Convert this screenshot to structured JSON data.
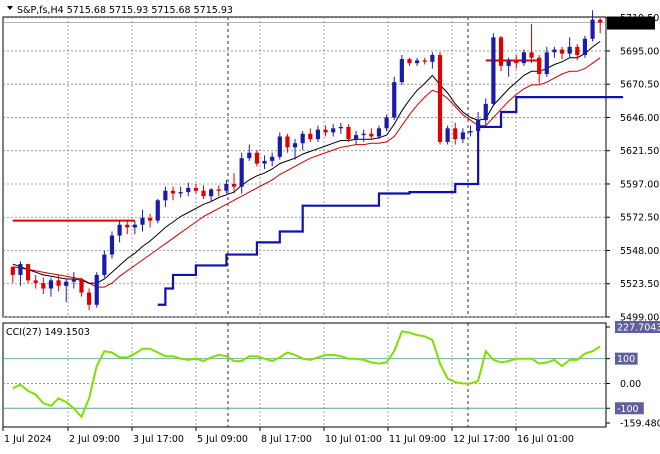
{
  "header": {
    "symbol_line": "S&P,fs,H4  5715.68 5715.93 5715.68 5715.93",
    "collapse_icon": "triangle-down-icon"
  },
  "colors": {
    "bull_candle": "#1b1baa",
    "bear_candle": "#e00000",
    "ma_fast": "#000000",
    "ma_slow": "#cc0000",
    "support_line": "#1010b0",
    "level_line": "#e00000",
    "cci_line": "#7fe000",
    "grid": "#8a8a8a",
    "price_tag_bg": "#000000",
    "price_tag_text": "#ffffff"
  },
  "chart_data": [
    {
      "type": "candlestick",
      "title": "S&P,fs,H4",
      "current_price": "5715.93",
      "ylim": [
        5499.0,
        5720.0
      ],
      "y_ticks": [
        "5719.50",
        "5695.00",
        "5670.50",
        "5646.00",
        "5621.50",
        "5597.00",
        "5572.50",
        "5548.00",
        "5523.50",
        "5499.00"
      ],
      "x_ticks": [
        "1 Jul 2024",
        "2 Jul 09:00",
        "3 Jul 17:00",
        "5 Jul 09:00",
        "8 Jul 17:00",
        "10 Jul 01:00",
        "11 Jul 09:00",
        "12 Jul 17:00",
        "16 Jul 01:00"
      ],
      "grid": true,
      "candles": [
        [
          5536,
          5536,
          5524,
          5530
        ],
        [
          5530,
          5540,
          5522,
          5538
        ],
        [
          5538,
          5538,
          5524,
          5526
        ],
        [
          5526,
          5530,
          5520,
          5524
        ],
        [
          5524,
          5528,
          5516,
          5520
        ],
        [
          5520,
          5528,
          5514,
          5526
        ],
        [
          5526,
          5530,
          5518,
          5522
        ],
        [
          5522,
          5527,
          5510,
          5525
        ],
        [
          5525,
          5532,
          5520,
          5527
        ],
        [
          5527,
          5528,
          5514,
          5517
        ],
        [
          5517,
          5520,
          5504,
          5508
        ],
        [
          5508,
          5532,
          5506,
          5530
        ],
        [
          5530,
          5548,
          5528,
          5545
        ],
        [
          5545,
          5562,
          5542,
          5559
        ],
        [
          5559,
          5570,
          5554,
          5567
        ],
        [
          5567,
          5570,
          5560,
          5565
        ],
        [
          5565,
          5570,
          5560,
          5567
        ],
        [
          5567,
          5578,
          5562,
          5572
        ],
        [
          5572,
          5575,
          5565,
          5570
        ],
        [
          5570,
          5586,
          5568,
          5585
        ],
        [
          5585,
          5595,
          5580,
          5592
        ],
        [
          5592,
          5595,
          5585,
          5590
        ],
        [
          5590,
          5595,
          5587,
          5591
        ],
        [
          5591,
          5598,
          5588,
          5594
        ],
        [
          5594,
          5597,
          5590,
          5592
        ],
        [
          5592,
          5596,
          5586,
          5588
        ],
        [
          5588,
          5594,
          5584,
          5593
        ],
        [
          5593,
          5596,
          5588,
          5592
        ],
        [
          5592,
          5600,
          5590,
          5597
        ],
        [
          5597,
          5605,
          5590,
          5595
        ],
        [
          5595,
          5620,
          5590,
          5616
        ],
        [
          5616,
          5626,
          5614,
          5620
        ],
        [
          5620,
          5622,
          5610,
          5612
        ],
        [
          5612,
          5618,
          5608,
          5614
        ],
        [
          5614,
          5620,
          5610,
          5617
        ],
        [
          5617,
          5635,
          5615,
          5632
        ],
        [
          5632,
          5634,
          5620,
          5624
        ],
        [
          5624,
          5630,
          5615,
          5627
        ],
        [
          5627,
          5636,
          5622,
          5634
        ],
        [
          5634,
          5638,
          5628,
          5630
        ],
        [
          5630,
          5640,
          5628,
          5637
        ],
        [
          5637,
          5640,
          5632,
          5635
        ],
        [
          5635,
          5641,
          5632,
          5638
        ],
        [
          5638,
          5642,
          5634,
          5639
        ],
        [
          5639,
          5641,
          5628,
          5630
        ],
        [
          5630,
          5636,
          5626,
          5633
        ],
        [
          5633,
          5637,
          5628,
          5634
        ],
        [
          5634,
          5638,
          5630,
          5632
        ],
        [
          5632,
          5640,
          5630,
          5638
        ],
        [
          5638,
          5648,
          5636,
          5646
        ],
        [
          5646,
          5676,
          5644,
          5672
        ],
        [
          5672,
          5692,
          5670,
          5689
        ],
        [
          5689,
          5690,
          5684,
          5686
        ],
        [
          5686,
          5690,
          5684,
          5688
        ],
        [
          5688,
          5690,
          5685,
          5687
        ],
        [
          5687,
          5694,
          5682,
          5692
        ],
        [
          5692,
          5694,
          5626,
          5628
        ],
        [
          5628,
          5640,
          5626,
          5638
        ],
        [
          5638,
          5642,
          5626,
          5630
        ],
        [
          5630,
          5638,
          5627,
          5635
        ],
        [
          5635,
          5640,
          5632,
          5636
        ],
        [
          5636,
          5650,
          5620,
          5644
        ],
        [
          5644,
          5660,
          5640,
          5656
        ],
        [
          5656,
          5708,
          5654,
          5705
        ],
        [
          5705,
          5706,
          5680,
          5684
        ],
        [
          5684,
          5690,
          5676,
          5688
        ],
        [
          5688,
          5692,
          5682,
          5686
        ],
        [
          5686,
          5696,
          5684,
          5694
        ],
        [
          5694,
          5715,
          5686,
          5690
        ],
        [
          5690,
          5692,
          5671,
          5678
        ],
        [
          5678,
          5698,
          5676,
          5694
        ],
        [
          5694,
          5698,
          5690,
          5696
        ],
        [
          5696,
          5698,
          5689,
          5693
        ],
        [
          5693,
          5705,
          5690,
          5698
        ],
        [
          5698,
          5700,
          5688,
          5692
        ],
        [
          5692,
          5706,
          5690,
          5704
        ],
        [
          5704,
          5725,
          5702,
          5718
        ],
        [
          5718,
          5719,
          5708,
          5716
        ]
      ],
      "ma_fast": [
        5538,
        5536,
        5534,
        5532,
        5530,
        5529,
        5528,
        5527,
        5527,
        5526,
        5524,
        5524,
        5527,
        5532,
        5537,
        5542,
        5546,
        5551,
        5555,
        5560,
        5565,
        5569,
        5573,
        5576,
        5579,
        5582,
        5584,
        5587,
        5589,
        5591,
        5596,
        5600,
        5603,
        5605,
        5608,
        5612,
        5614,
        5616,
        5619,
        5621,
        5623,
        5625,
        5627,
        5629,
        5629,
        5630,
        5630,
        5630,
        5631,
        5633,
        5641,
        5651,
        5659,
        5666,
        5671,
        5677,
        5670,
        5664,
        5656,
        5650,
        5646,
        5644,
        5645,
        5655,
        5661,
        5667,
        5672,
        5677,
        5680,
        5680,
        5682,
        5685,
        5687,
        5690,
        5690,
        5693,
        5698,
        5702
      ],
      "ma_slow": [
        5536,
        5535,
        5534,
        5533,
        5532,
        5531,
        5530,
        5529,
        5528,
        5527,
        5524,
        5521,
        5521,
        5524,
        5529,
        5533,
        5537,
        5541,
        5545,
        5549,
        5553,
        5557,
        5561,
        5565,
        5569,
        5573,
        5576,
        5579,
        5582,
        5585,
        5588,
        5591,
        5594,
        5597,
        5600,
        5604,
        5607,
        5610,
        5613,
        5616,
        5618,
        5620,
        5622,
        5624,
        5625,
        5626,
        5626,
        5627,
        5627,
        5628,
        5632,
        5640,
        5648,
        5655,
        5661,
        5666,
        5664,
        5660,
        5654,
        5648,
        5644,
        5640,
        5640,
        5646,
        5652,
        5658,
        5663,
        5667,
        5670,
        5670,
        5672,
        5675,
        5678,
        5680,
        5680,
        5682,
        5686,
        5690
      ],
      "support_steps": [
        {
          "from": 19,
          "to": 20,
          "value": 5508
        },
        {
          "from": 20,
          "to": 21,
          "value": 5520
        },
        {
          "from": 21,
          "to": 24,
          "value": 5530
        },
        {
          "from": 24,
          "to": 28,
          "value": 5537
        },
        {
          "from": 28,
          "to": 32,
          "value": 5545
        },
        {
          "from": 32,
          "to": 35,
          "value": 5554
        },
        {
          "from": 35,
          "to": 38,
          "value": 5562
        },
        {
          "from": 38,
          "to": 48,
          "value": 5581
        },
        {
          "from": 48,
          "to": 52,
          "value": 5590
        },
        {
          "from": 52,
          "to": 58,
          "value": 5591
        },
        {
          "from": 58,
          "to": 61,
          "value": 5597
        },
        {
          "from": 61,
          "to": 64,
          "value": 5639
        },
        {
          "from": 64,
          "to": 66,
          "value": 5650
        },
        {
          "from": 66,
          "to": 70,
          "value": 5661
        },
        {
          "from": 70,
          "to": 80,
          "value": 5661
        }
      ],
      "support_steps_note": "",
      "level_lines": [
        {
          "from": 0,
          "to": 16,
          "value": 5570
        },
        {
          "from": 62,
          "to": 69,
          "value": 5688
        }
      ]
    },
    {
      "type": "line",
      "title": "CCI(27) 149.1503",
      "ylim": [
        -159.4803,
        227.7043
      ],
      "y_ticks": [
        "227.7043",
        "100",
        "0.00",
        "-100",
        "-159.4803"
      ],
      "highlighted_ticks": [
        "227.7043",
        "100",
        "-100"
      ],
      "grid": true,
      "values": [
        -20,
        -5,
        -30,
        -45,
        -80,
        -90,
        -60,
        -75,
        -100,
        -135,
        -60,
        70,
        130,
        125,
        105,
        105,
        120,
        140,
        140,
        125,
        110,
        110,
        100,
        95,
        100,
        90,
        105,
        115,
        110,
        90,
        90,
        110,
        110,
        100,
        90,
        105,
        125,
        115,
        100,
        95,
        105,
        115,
        115,
        110,
        100,
        100,
        95,
        85,
        80,
        85,
        130,
        210,
        205,
        195,
        190,
        175,
        80,
        20,
        5,
        0,
        0,
        10,
        130,
        95,
        85,
        90,
        100,
        100,
        100,
        80,
        85,
        95,
        70,
        95,
        95,
        120,
        130,
        149
      ]
    }
  ]
}
